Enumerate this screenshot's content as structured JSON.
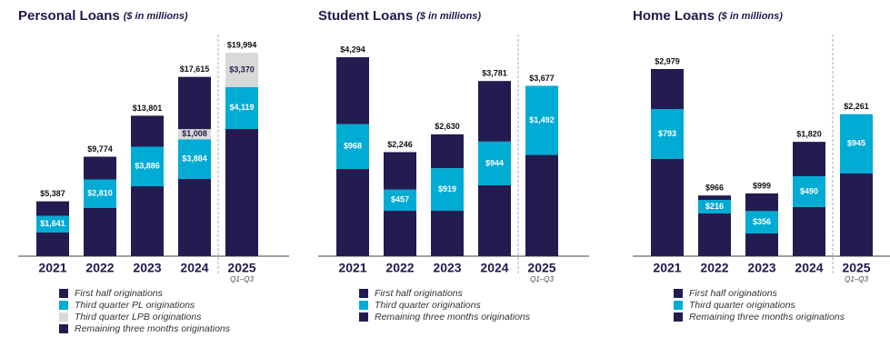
{
  "chart_data": [
    {
      "type": "bar",
      "stacked": true,
      "title": "Personal Loans",
      "subtitle": "($ in millions)",
      "categories": [
        "2021",
        "2022",
        "2023",
        "2024",
        "2025"
      ],
      "category_notes": [
        null,
        null,
        null,
        null,
        "Q1–Q3"
      ],
      "series": [
        {
          "name": "First half originations",
          "color": "#221c50",
          "values": [
            2322,
            4730,
            6870,
            7590,
            12505
          ]
        },
        {
          "name": "Third quarter PL originations",
          "color": "#00abd4",
          "values": [
            1641,
            2810,
            3886,
            3884,
            4119
          ],
          "value_labels": [
            "$1,641",
            "$2,810",
            "$3,886",
            "$3,884",
            "$4,119"
          ]
        },
        {
          "name": "Third quarter LPB originations",
          "color": "#d9d9d9",
          "values": [
            null,
            null,
            null,
            1008,
            3370
          ],
          "value_labels": [
            null,
            null,
            null,
            "$1,008",
            "$3,370"
          ]
        },
        {
          "name": "Remaining three months originations",
          "color": "#221c50",
          "values": [
            1424,
            2234,
            3045,
            5133,
            null
          ]
        }
      ],
      "totals": {
        "values": [
          5387,
          9774,
          13801,
          17615,
          19994
        ],
        "value_labels": [
          "$5,387",
          "$9,774",
          "$13,801",
          "$17,615",
          "$19,994"
        ]
      }
    },
    {
      "type": "bar",
      "stacked": true,
      "title": "Student Loans",
      "subtitle": "($ in millions)",
      "categories": [
        "2021",
        "2022",
        "2023",
        "2024",
        "2025"
      ],
      "category_notes": [
        null,
        null,
        null,
        null,
        "Q1–Q3"
      ],
      "series": [
        {
          "name": "First half originations",
          "color": "#221c50",
          "values": [
            1882,
            980,
            980,
            1530,
            2185
          ]
        },
        {
          "name": "Third quarter originations",
          "color": "#00abd4",
          "values": [
            968,
            457,
            919,
            944,
            1492
          ],
          "value_labels": [
            "$968",
            "$457",
            "$919",
            "$944",
            "$1,492"
          ]
        },
        {
          "name": "Remaining three months originations",
          "color": "#221c50",
          "values": [
            1444,
            809,
            731,
            1307,
            null
          ]
        }
      ],
      "totals": {
        "values": [
          4294,
          2246,
          2630,
          3781,
          3677
        ],
        "value_labels": [
          "$4,294",
          "$2,246",
          "$2,630",
          "$3,781",
          "$3,677"
        ]
      }
    },
    {
      "type": "bar",
      "stacked": true,
      "title": "Home Loans",
      "subtitle": "($ in millions)",
      "categories": [
        "2021",
        "2022",
        "2023",
        "2024",
        "2025"
      ],
      "category_notes": [
        null,
        null,
        null,
        null,
        "Q1–Q3"
      ],
      "series": [
        {
          "name": "First half originations",
          "color": "#221c50",
          "values": [
            1548,
            680,
            362,
            782,
            1316
          ]
        },
        {
          "name": "Third quarter originations",
          "color": "#00abd4",
          "values": [
            793,
            216,
            356,
            490,
            945
          ],
          "value_labels": [
            "$793",
            "$216",
            "$356",
            "$490",
            "$945"
          ]
        },
        {
          "name": "Remaining three months originations",
          "color": "#221c50",
          "values": [
            638,
            70,
            281,
            548,
            null
          ]
        }
      ],
      "totals": {
        "values": [
          2979,
          966,
          999,
          1820,
          2261
        ],
        "value_labels": [
          "$2,979",
          "$966",
          "$999",
          "$1,820",
          "$2,261"
        ]
      }
    }
  ]
}
